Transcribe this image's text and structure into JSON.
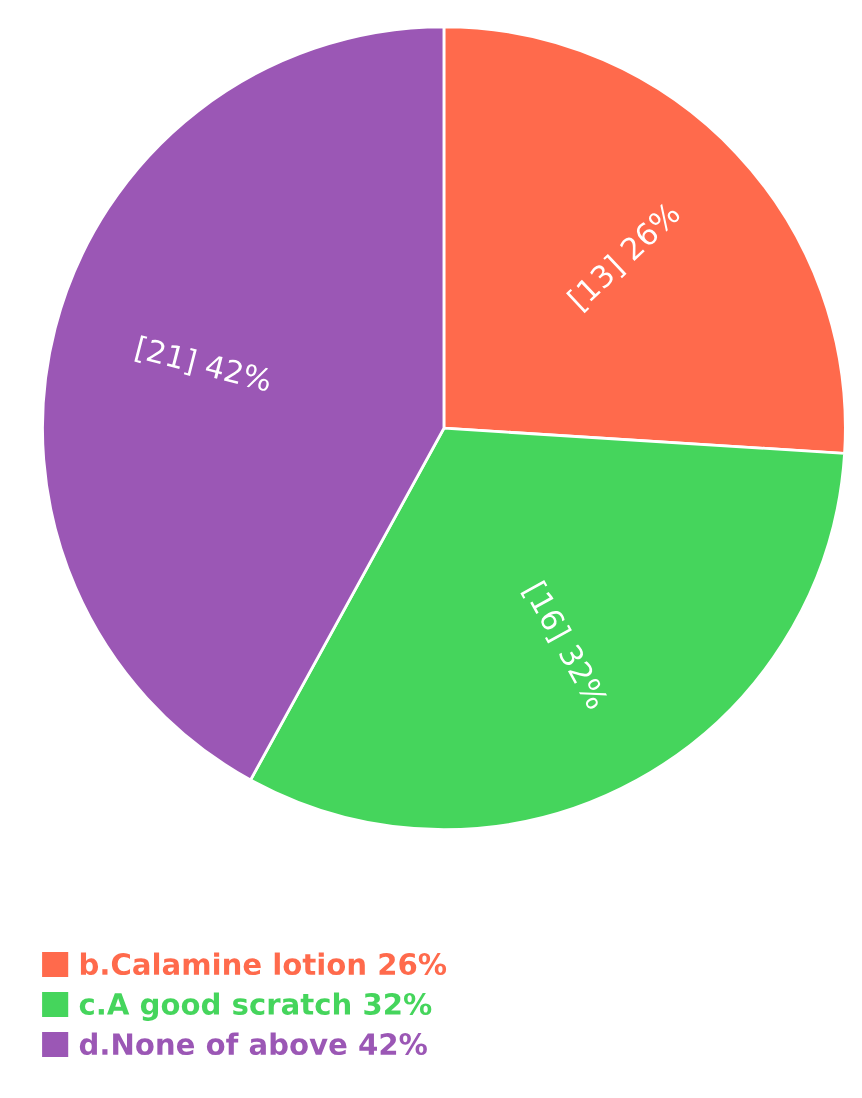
{
  "chart_data": {
    "type": "pie",
    "categories": [
      "b.Calamine lotion 26%",
      "c.A good scratch 32%",
      "d.None of above 42%"
    ],
    "values": [
      13,
      16,
      21
    ],
    "value_labels": [
      "[13] 26%",
      "[16] 32%",
      "[21] 42%"
    ],
    "colors": [
      "#ff6a4c",
      "#45d55c",
      "#9b57b5"
    ],
    "legend": "bottom left"
  }
}
